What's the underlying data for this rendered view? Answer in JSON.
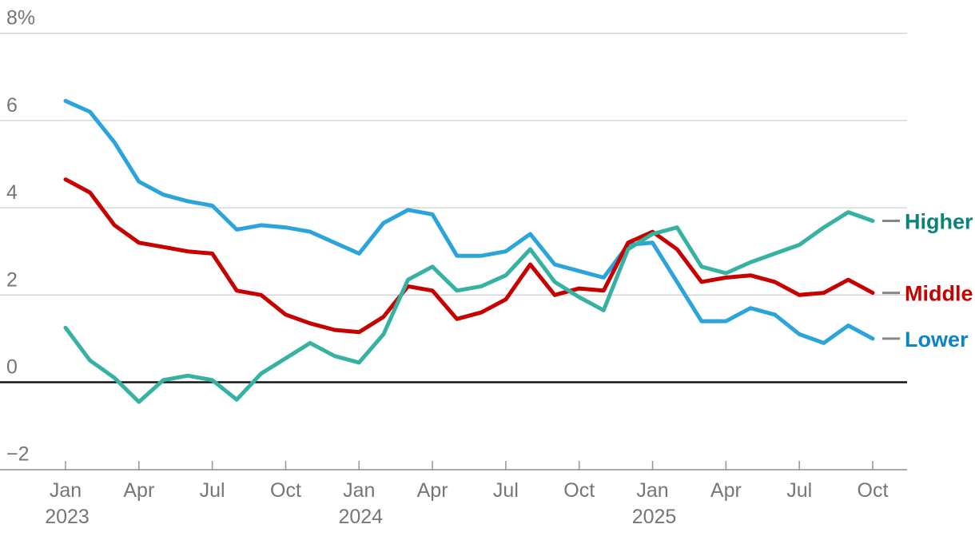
{
  "chart_data": {
    "type": "line",
    "title": "",
    "value_unit": "%",
    "x": [
      "Jan 2023",
      "Feb 2023",
      "Mar 2023",
      "Apr 2023",
      "May 2023",
      "Jun 2023",
      "Jul 2023",
      "Aug 2023",
      "Sep 2023",
      "Oct 2023",
      "Nov 2023",
      "Dec 2023",
      "Jan 2024",
      "Feb 2024",
      "Mar 2024",
      "Apr 2024",
      "May 2024",
      "Jun 2024",
      "Jul 2024",
      "Aug 2024",
      "Sep 2024",
      "Oct 2024",
      "Nov 2024",
      "Dec 2024",
      "Jan 2025",
      "Feb 2025",
      "Mar 2025",
      "Apr 2025",
      "May 2025",
      "Jun 2025",
      "Jul 2025",
      "Aug 2025",
      "Sep 2025",
      "Oct 2025"
    ],
    "series": [
      {
        "name": "Higher",
        "values": [
          1.25,
          0.5,
          0.1,
          -0.45,
          0.05,
          0.15,
          0.05,
          -0.4,
          0.2,
          0.55,
          0.9,
          0.6,
          0.45,
          1.1,
          2.35,
          2.65,
          2.1,
          2.2,
          2.45,
          3.05,
          2.3,
          1.95,
          1.65,
          3.05,
          3.4,
          3.55,
          2.65,
          2.5,
          2.75,
          2.95,
          3.15,
          3.55,
          3.9,
          3.7
        ]
      },
      {
        "name": "Middle",
        "values": [
          4.65,
          4.35,
          3.6,
          3.2,
          3.1,
          3.0,
          2.95,
          2.1,
          2.0,
          1.55,
          1.35,
          1.2,
          1.15,
          1.5,
          2.2,
          2.1,
          1.45,
          1.6,
          1.9,
          2.7,
          2.0,
          2.15,
          2.1,
          3.2,
          3.45,
          3.05,
          2.3,
          2.4,
          2.45,
          2.3,
          2.0,
          2.05,
          2.35,
          2.05
        ]
      },
      {
        "name": "Lower",
        "values": [
          6.45,
          6.2,
          5.5,
          4.6,
          4.3,
          4.15,
          4.05,
          3.5,
          3.6,
          3.55,
          3.45,
          3.2,
          2.95,
          3.65,
          3.95,
          3.85,
          2.9,
          2.9,
          3.0,
          3.4,
          2.7,
          2.55,
          2.4,
          3.15,
          3.2,
          2.3,
          1.4,
          1.4,
          1.7,
          1.55,
          1.1,
          0.9,
          1.3,
          1.0
        ]
      }
    ],
    "ylim": [
      -2,
      8
    ],
    "grid": true,
    "legend_position": "right of line ends"
  },
  "axes": {
    "y_ticks": [
      {
        "label": "8%",
        "value": 8
      },
      {
        "label": "6",
        "value": 6
      },
      {
        "label": "4",
        "value": 4
      },
      {
        "label": "2",
        "value": 2
      },
      {
        "label": "0",
        "value": 0
      },
      {
        "label": "−2",
        "value": -2
      }
    ],
    "x_ticks": [
      {
        "month": "Jan",
        "year": "2023",
        "index": 0
      },
      {
        "month": "Apr",
        "year": "",
        "index": 3
      },
      {
        "month": "Jul",
        "year": "",
        "index": 6
      },
      {
        "month": "Oct",
        "year": "",
        "index": 9
      },
      {
        "month": "Jan",
        "year": "2024",
        "index": 12
      },
      {
        "month": "Apr",
        "year": "",
        "index": 15
      },
      {
        "month": "Jul",
        "year": "",
        "index": 18
      },
      {
        "month": "Oct",
        "year": "",
        "index": 21
      },
      {
        "month": "Jan",
        "year": "2025",
        "index": 24
      },
      {
        "month": "Apr",
        "year": "",
        "index": 27
      },
      {
        "month": "Jul",
        "year": "",
        "index": 30
      },
      {
        "month": "Oct",
        "year": "",
        "index": 33
      }
    ]
  },
  "legend": {
    "items": [
      {
        "label": "Higher",
        "text_color": "#0A837B"
      },
      {
        "label": "Middle",
        "text_color": "#C70000"
      },
      {
        "label": "Lower",
        "text_color": "#0B84C8"
      }
    ]
  },
  "colors": {
    "higher_line": "#36B2A2",
    "middle_line": "#C70000",
    "lower_line": "#2BA3DB",
    "grid_line": "#D0D0D0",
    "zero_line": "#141414",
    "axis_line": "#ABABAB",
    "tick_mark": "#9A9A9A",
    "axis_text": "#767676",
    "legend_dash": "#878787"
  }
}
